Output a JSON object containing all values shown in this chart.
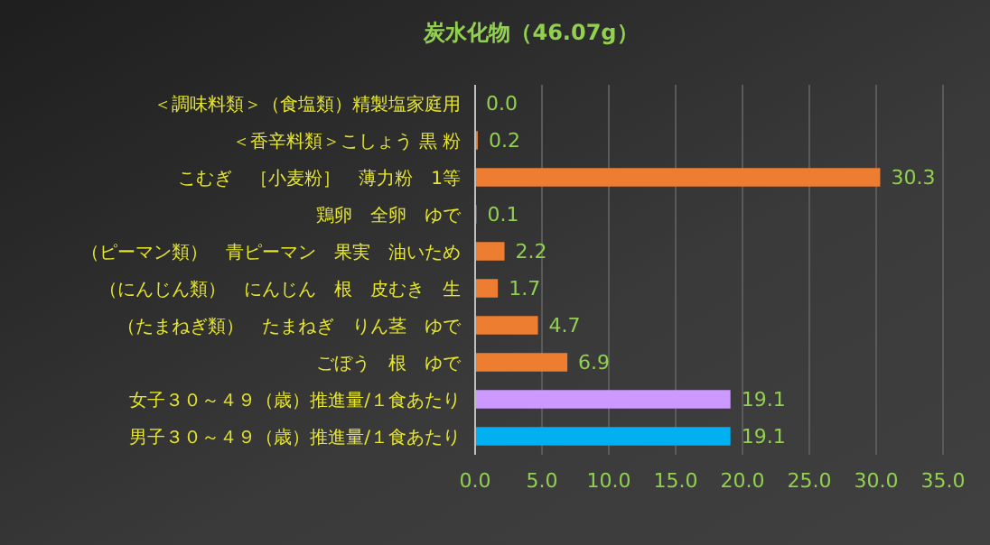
{
  "chart_data": {
    "type": "bar",
    "orientation": "horizontal",
    "title": "炭水化物（46.07g）",
    "categories": [
      "＜調味料類＞（食塩類）精製塩家庭用",
      "＜香辛料類＞こしょう 黒 粉",
      "こむぎ　［小麦粉］　薄力粉　1等",
      "鶏卵　全卵　ゆで",
      "（ピーマン類）　青ピーマン　果実　油いため",
      "（にんじん類）　にんじん　根　皮むき　生",
      "（たまねぎ類）　たまねぎ　りん茎　ゆで",
      "ごぼう　根　ゆで",
      "女子３０～４９（歳）推進量/１食あたり",
      "男子３０～４９（歳）推進量/１食あたり"
    ],
    "values": [
      0.0,
      0.2,
      30.3,
      0.1,
      2.2,
      1.7,
      4.7,
      6.9,
      19.1,
      19.1
    ],
    "colors": [
      "#ed7d31",
      "#ed7d31",
      "#ed7d31",
      "#ed7d31",
      "#ed7d31",
      "#ed7d31",
      "#ed7d31",
      "#ed7d31",
      "#cc99ff",
      "#00b0f0"
    ],
    "value_labels": [
      "0.0",
      "0.2",
      "30.3",
      "0.1",
      "2.2",
      "1.7",
      "4.7",
      "6.9",
      "19.1",
      "19.1"
    ],
    "xlim": [
      0,
      35
    ],
    "xticks": [
      {
        "value": 0,
        "label": "0.0"
      },
      {
        "value": 5,
        "label": "5.0"
      },
      {
        "value": 10,
        "label": "10.0"
      },
      {
        "value": 15,
        "label": "15.0"
      },
      {
        "value": 20,
        "label": "20.0"
      },
      {
        "value": 25,
        "label": "25.0"
      },
      {
        "value": 30,
        "label": "30.0"
      },
      {
        "value": 35,
        "label": "35.0"
      }
    ],
    "grid": "x"
  }
}
